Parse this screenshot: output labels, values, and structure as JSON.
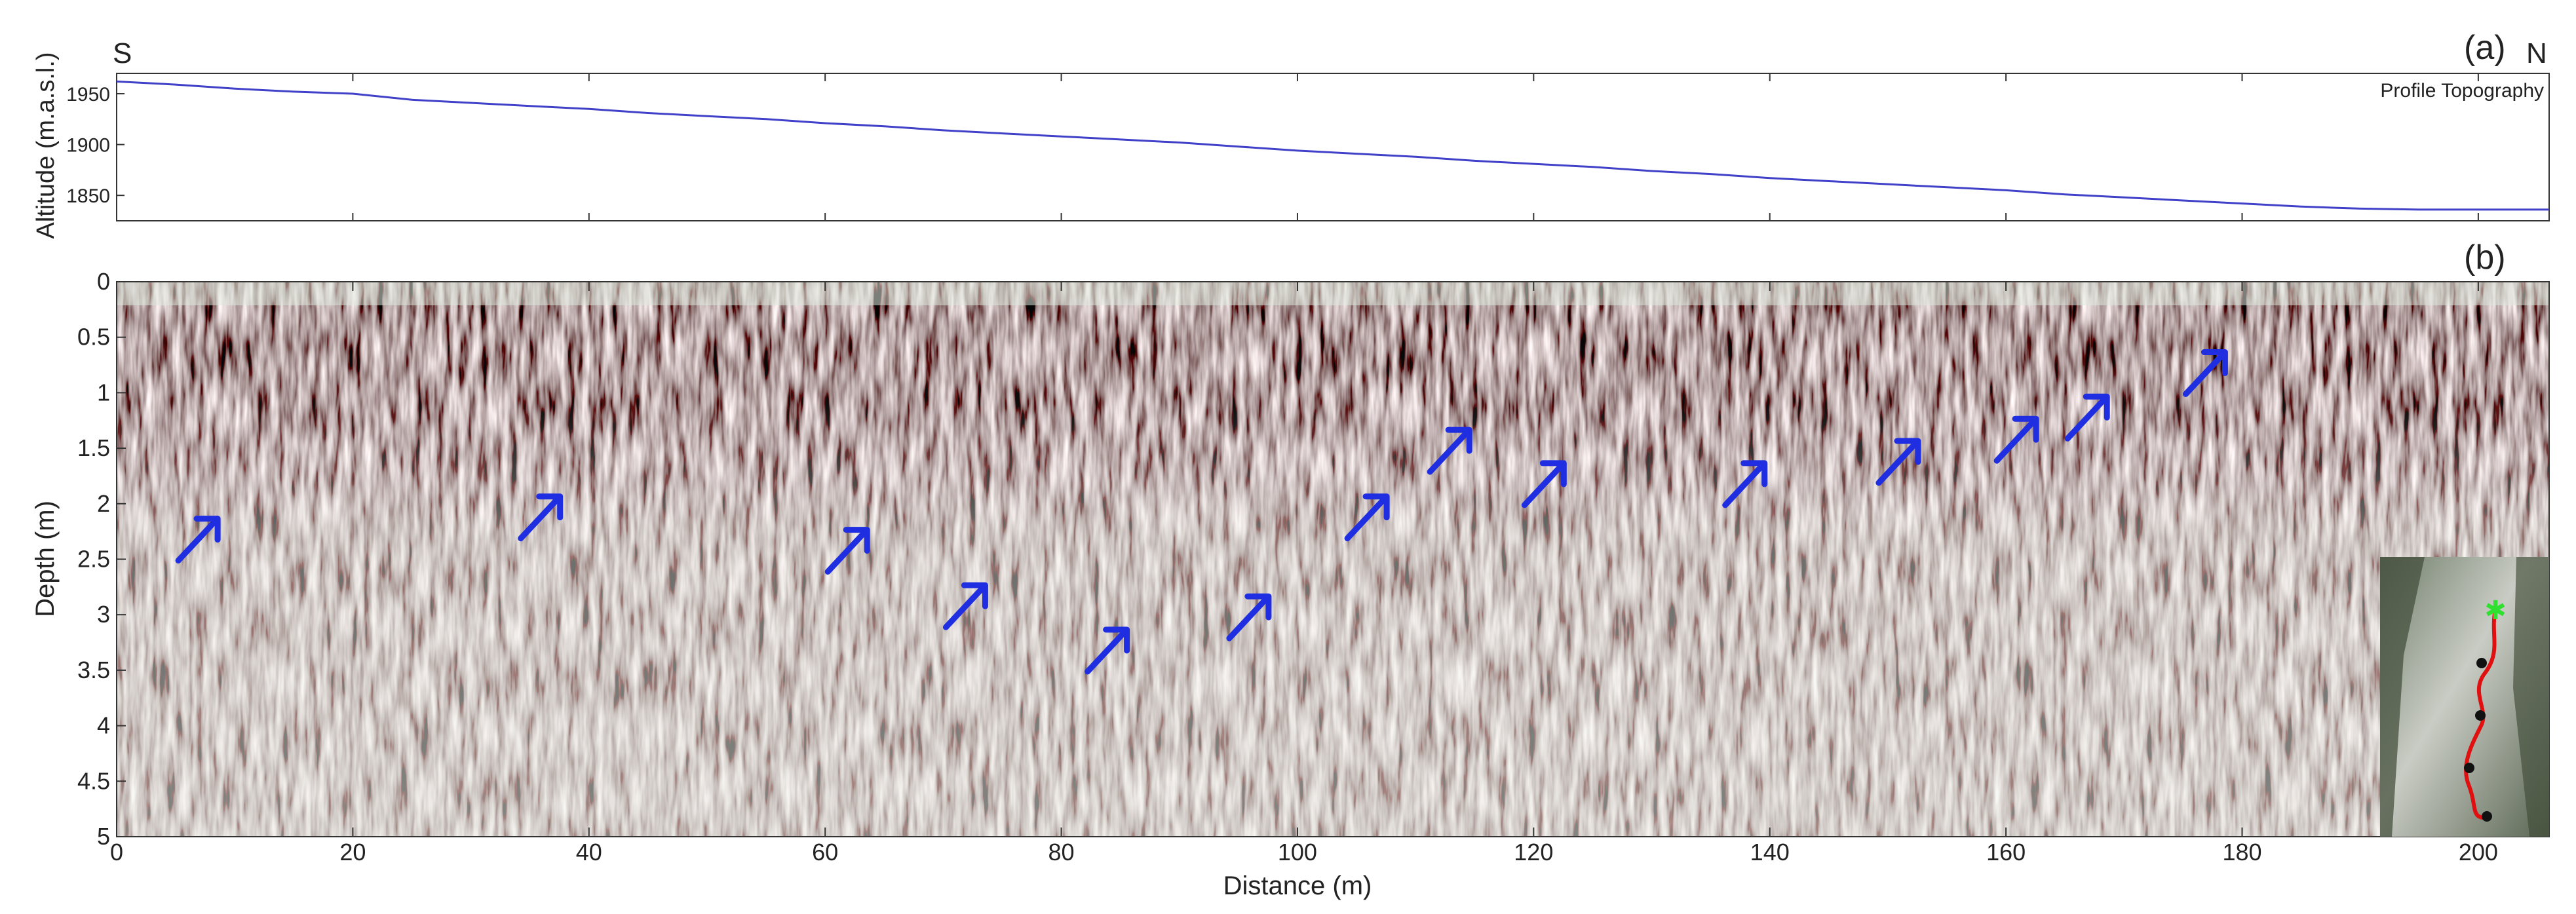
{
  "chart_data": [
    {
      "panel": "(a)",
      "type": "line",
      "direction_left": "S",
      "direction_right": "N",
      "ylabel": "Altitude (m.a.s.l.)",
      "legend": "Profile Topography",
      "legend_position": "top-right",
      "xlim": [
        0,
        206
      ],
      "ylim": [
        1825,
        1970
      ],
      "xticks": [
        0,
        20,
        40,
        60,
        80,
        100,
        120,
        140,
        160,
        180,
        200
      ],
      "yticks": [
        1850,
        1900,
        1950
      ],
      "series": [
        {
          "name": "Profile Topography",
          "color": "#4040c8",
          "x": [
            0,
            5,
            10,
            15,
            20,
            25,
            30,
            35,
            40,
            45,
            50,
            55,
            60,
            65,
            70,
            75,
            80,
            85,
            90,
            95,
            100,
            105,
            110,
            115,
            120,
            125,
            130,
            135,
            140,
            145,
            150,
            155,
            160,
            165,
            170,
            175,
            180,
            185,
            190,
            195,
            200,
            206
          ],
          "y": [
            1962,
            1959,
            1955,
            1952,
            1950,
            1944,
            1941,
            1938,
            1935,
            1931,
            1928,
            1925,
            1921,
            1918,
            1914,
            1911,
            1908,
            1905,
            1902,
            1898,
            1894,
            1891,
            1888,
            1884,
            1881,
            1878,
            1874,
            1871,
            1867,
            1864,
            1861,
            1858,
            1855,
            1851,
            1848,
            1845,
            1842,
            1839,
            1837,
            1836,
            1836,
            1836
          ]
        }
      ]
    },
    {
      "panel": "(b)",
      "type": "heatmap",
      "xlabel": "Distance (m)",
      "ylabel": "Depth (m)",
      "xlim": [
        0,
        206
      ],
      "ylim": [
        5,
        0
      ],
      "xticks": [
        0,
        20,
        40,
        60,
        80,
        100,
        120,
        140,
        160,
        180,
        200
      ],
      "yticks": [
        0,
        0.5,
        1,
        1.5,
        2,
        2.5,
        3,
        3.5,
        4,
        4.5,
        5
      ],
      "colormap": [
        "#0a0a0a",
        "#c83a2a",
        "#e8efe6",
        "#4a8a9a"
      ],
      "arrow_color": "#1f2ee0",
      "arrows": [
        {
          "x": 7,
          "y": 2.3
        },
        {
          "x": 36,
          "y": 2.1
        },
        {
          "x": 62,
          "y": 2.4
        },
        {
          "x": 72,
          "y": 2.9
        },
        {
          "x": 84,
          "y": 3.3
        },
        {
          "x": 96,
          "y": 3.0
        },
        {
          "x": 106,
          "y": 2.1
        },
        {
          "x": 113,
          "y": 1.5
        },
        {
          "x": 121,
          "y": 1.8
        },
        {
          "x": 138,
          "y": 1.8
        },
        {
          "x": 151,
          "y": 1.6
        },
        {
          "x": 161,
          "y": 1.4
        },
        {
          "x": 167,
          "y": 1.2
        },
        {
          "x": 177,
          "y": 0.8
        }
      ],
      "inset": {
        "line_color": "#e01010",
        "start_marker_color": "#30e030"
      }
    }
  ]
}
